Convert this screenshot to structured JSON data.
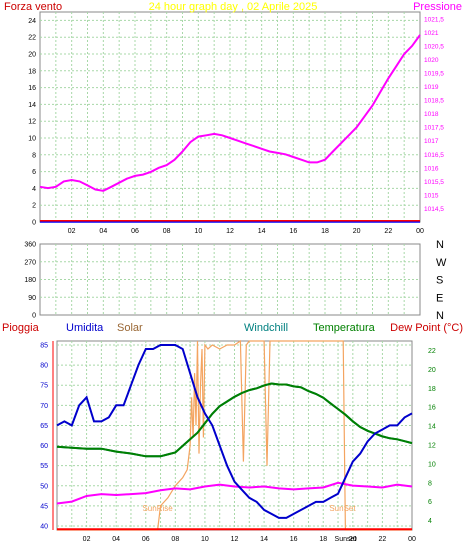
{
  "colors": {
    "grid": "#a8d8a8",
    "pressure": "#ff00ff",
    "windchill": "#008080",
    "temperature": "#008000",
    "humidity": "#0000cc",
    "solar": "#f4a460",
    "dewpoint": "#ff00ff",
    "wind": "#0000ff",
    "rain": "#ff0000",
    "label_red": "#cc0000",
    "label_solar": "#996633",
    "label_windchill": "#008080"
  },
  "chart_data": [
    {
      "type": "line",
      "title": "24 hour graph day , 02 Aprile 2025",
      "left_label": "Forza vento",
      "right_label": "Pressione",
      "x_ticks": [
        "02",
        "04",
        "06",
        "08",
        "10",
        "12",
        "14",
        "16",
        "18",
        "20",
        "22",
        "00"
      ],
      "left_ticks": [
        "0",
        "2",
        "4",
        "6",
        "8",
        "10",
        "12",
        "14",
        "16",
        "18",
        "20",
        "22",
        "24"
      ],
      "right_ticks": [
        "1014,5",
        "1015",
        "1015,5",
        "1016",
        "1016,5",
        "1017",
        "1017,5",
        "1018",
        "1018,5",
        "1019",
        "1019,5",
        "1020",
        "1020,5",
        "1021",
        "1021,5"
      ],
      "xlim": [
        0,
        24
      ],
      "left_ylim": [
        0,
        25
      ],
      "right_ylim": [
        1014,
        1021.75
      ],
      "series": [
        {
          "key": "pressure",
          "axis": "right",
          "x": [
            0,
            0.5,
            1,
            1.5,
            2,
            2.5,
            3,
            3.5,
            4,
            4.5,
            5,
            5.5,
            6,
            6.5,
            7,
            7.5,
            8,
            8.5,
            9,
            9.5,
            10,
            10.5,
            11,
            11.5,
            12,
            12.5,
            13,
            13.5,
            14,
            14.5,
            15,
            15.5,
            16,
            16.5,
            17,
            17.5,
            18,
            18.5,
            19,
            19.5,
            20,
            20.5,
            21,
            21.5,
            22,
            22.5,
            23,
            23.5,
            24
          ],
          "y": [
            1015.3,
            1015.25,
            1015.3,
            1015.5,
            1015.55,
            1015.5,
            1015.35,
            1015.2,
            1015.15,
            1015.3,
            1015.45,
            1015.6,
            1015.7,
            1015.75,
            1015.85,
            1016.0,
            1016.1,
            1016.3,
            1016.6,
            1016.95,
            1017.15,
            1017.2,
            1017.25,
            1017.2,
            1017.1,
            1017.0,
            1016.9,
            1016.8,
            1016.7,
            1016.6,
            1016.55,
            1016.5,
            1016.4,
            1016.3,
            1016.2,
            1016.2,
            1016.3,
            1016.6,
            1016.9,
            1017.2,
            1017.5,
            1017.9,
            1018.3,
            1018.8,
            1019.3,
            1019.75,
            1020.2,
            1020.5,
            1020.9
          ]
        },
        {
          "key": "wind",
          "axis": "left",
          "x": [
            0,
            24
          ],
          "y": [
            0,
            0
          ]
        },
        {
          "key": "rain",
          "axis": "left",
          "x": [
            0,
            24
          ],
          "y": [
            0.15,
            0.15
          ]
        }
      ]
    },
    {
      "type": "scatter",
      "title": "",
      "left_ticks": [
        "0",
        "90",
        "180",
        "270",
        "360"
      ],
      "right_ticks": [
        "N",
        "E",
        "S",
        "W",
        "N"
      ],
      "xlim": [
        0,
        24
      ],
      "ylim": [
        0,
        360
      ],
      "series": []
    },
    {
      "type": "line",
      "labels": {
        "rain": "Pioggia",
        "humidity": "Umidita",
        "solar": "Solar",
        "windchill": "Windchill",
        "temperature": "Temperatura",
        "dewpoint": "Dew Point (°C)"
      },
      "x_ticks": [
        "02",
        "04",
        "06",
        "08",
        "10",
        "12",
        "14",
        "16",
        "18",
        "20",
        "22",
        "00"
      ],
      "left_ticks": [
        "40",
        "45",
        "50",
        "55",
        "60",
        "65",
        "70",
        "75",
        "80",
        "85"
      ],
      "right_ticks": [
        "4",
        "6",
        "8",
        "10",
        "12",
        "14",
        "16",
        "18",
        "20",
        "22"
      ],
      "xlim": [
        0,
        24
      ],
      "left_ylim": [
        39,
        86
      ],
      "right_ylim": [
        3,
        23
      ],
      "annotations": [
        {
          "text": "SunRise",
          "x": 6.8
        },
        {
          "text": "SunSet",
          "x": 19.3
        },
        {
          "text": "Sunset",
          "x": 19.5
        }
      ],
      "series": [
        {
          "key": "humidity",
          "axis": "left",
          "x": [
            0,
            0.5,
            1,
            1.5,
            2,
            2.5,
            3,
            3.5,
            4,
            4.5,
            5,
            5.5,
            6,
            6.5,
            7,
            7.5,
            8,
            8.5,
            9,
            9.5,
            10,
            10.5,
            11,
            11.5,
            12,
            12.5,
            13,
            13.5,
            14,
            14.5,
            15,
            15.5,
            16,
            16.5,
            17,
            17.5,
            18,
            18.5,
            19,
            19.5,
            20,
            20.5,
            21,
            21.5,
            22,
            22.5,
            23,
            23.5,
            24
          ],
          "y": [
            65,
            66,
            65,
            70,
            72,
            66,
            66,
            67,
            70,
            70,
            75,
            80,
            84,
            84,
            85,
            85,
            85,
            84,
            78,
            72,
            68,
            65,
            60,
            55,
            51,
            49,
            47,
            46,
            44,
            43,
            42,
            42,
            43,
            44,
            45,
            46,
            46,
            47,
            48,
            52,
            56,
            58,
            61,
            63,
            64,
            65,
            65,
            67,
            68
          ]
        },
        {
          "key": "solar",
          "axis": "left",
          "x": [
            0,
            6.8,
            7.0,
            7.5,
            8.0,
            8.5,
            8.8,
            9.0,
            9.1,
            9.2,
            9.3,
            9.4,
            9.5,
            9.6,
            9.7,
            9.8,
            9.9,
            10.0,
            10.2,
            10.5,
            11,
            11.5,
            12,
            12.4,
            12.6,
            12.8,
            13,
            14,
            14.2,
            14.4,
            14.6,
            15,
            16,
            17,
            18,
            19,
            19.2,
            19.35,
            19.5,
            24
          ],
          "y": [
            39,
            39,
            45,
            47,
            50,
            52,
            54,
            60,
            72,
            62,
            78,
            65,
            86,
            58,
            75,
            84,
            62,
            85,
            84,
            85,
            84,
            85,
            85,
            86,
            56,
            85,
            86,
            86,
            55,
            86,
            86,
            86,
            86,
            86,
            86,
            86,
            86,
            86,
            39,
            39
          ]
        },
        {
          "key": "windchill",
          "axis": "right",
          "x": [
            0,
            1,
            2,
            3,
            4,
            5,
            6,
            7,
            7.5,
            8,
            8.5,
            9,
            9.5,
            10,
            10.5,
            11,
            11.5,
            12,
            12.5,
            13,
            13.5,
            14,
            14.5,
            15,
            15.5,
            16,
            16.5,
            17,
            17.5,
            18,
            18.5,
            19,
            19.5,
            20,
            20.5,
            21,
            21.5,
            22,
            22.5,
            23,
            23.5,
            24
          ],
          "y": [
            11.8,
            11.7,
            11.6,
            11.6,
            11.3,
            11.1,
            10.8,
            10.8,
            11.0,
            11.2,
            11.9,
            12.6,
            13.3,
            14.3,
            15.3,
            16.1,
            16.6,
            17.1,
            17.5,
            17.8,
            18.0,
            18.3,
            18.5,
            18.4,
            18.4,
            18.2,
            18.1,
            17.7,
            17.4,
            17.0,
            16.4,
            15.8,
            15.2,
            14.5,
            13.9,
            13.5,
            13.2,
            12.9,
            12.7,
            12.6,
            12.4,
            12.2
          ]
        },
        {
          "key": "temperature",
          "axis": "right",
          "x": [
            0,
            1,
            2,
            3,
            4,
            5,
            6,
            7,
            7.5,
            8,
            8.5,
            9,
            9.5,
            10,
            10.5,
            11,
            11.5,
            12,
            12.5,
            13,
            13.5,
            14,
            14.5,
            15,
            15.5,
            16,
            16.5,
            17,
            17.5,
            18,
            18.5,
            19,
            19.5,
            20,
            20.5,
            21,
            21.5,
            22,
            22.5,
            23,
            23.5,
            24
          ],
          "y": [
            11.8,
            11.7,
            11.6,
            11.6,
            11.3,
            11.1,
            10.8,
            10.8,
            11.0,
            11.2,
            11.9,
            12.6,
            13.3,
            14.3,
            15.3,
            16.1,
            16.6,
            17.1,
            17.5,
            17.8,
            18.0,
            18.3,
            18.5,
            18.4,
            18.4,
            18.2,
            18.1,
            17.7,
            17.4,
            17.0,
            16.4,
            15.8,
            15.2,
            14.5,
            13.9,
            13.5,
            13.2,
            12.9,
            12.7,
            12.6,
            12.4,
            12.2
          ]
        },
        {
          "key": "dewpoint",
          "axis": "right",
          "x": [
            0,
            1,
            2,
            3,
            4,
            5,
            6,
            7,
            8,
            9,
            10,
            11,
            12,
            13,
            14,
            15,
            16,
            17,
            18,
            19,
            20,
            21,
            22,
            23,
            24
          ],
          "y": [
            5.8,
            6.0,
            6.6,
            6.8,
            6.7,
            6.8,
            6.9,
            7.2,
            7.4,
            7.3,
            7.6,
            7.8,
            7.6,
            7.5,
            7.6,
            7.4,
            7.3,
            7.4,
            7.5,
            8.0,
            7.7,
            7.6,
            7.5,
            7.8,
            7.6
          ]
        },
        {
          "key": "rain",
          "axis": "left",
          "x": [
            0,
            24
          ],
          "y": [
            39.2,
            39.2
          ]
        }
      ]
    }
  ]
}
